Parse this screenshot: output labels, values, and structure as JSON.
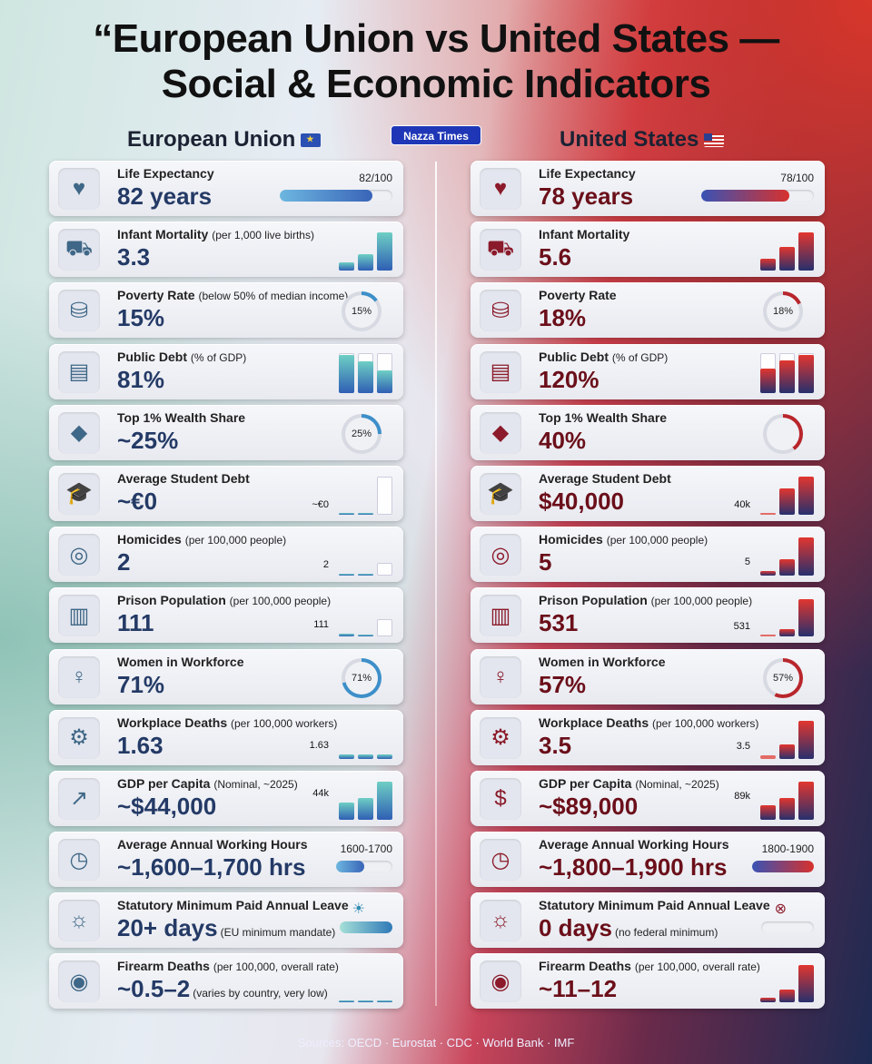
{
  "title": "“European Union vs United States —\nSocial & Economic Indicators",
  "badge": "Nazza Times",
  "eu": {
    "heading": "European Union",
    "items": [
      {
        "icon": "heart-up-icon",
        "label": "Life Expectancy",
        "sub": "",
        "value": "82 years",
        "note": "",
        "viz": "pbar",
        "vtext": "82/100",
        "fill": 0.82
      },
      {
        "icon": "stroller-icon",
        "label": "Infant Mortality",
        "sub": "(per 1,000 live births)",
        "value": "3.3",
        "note": "",
        "viz": "bars",
        "vtext": "",
        "bars": [
          0.22,
          0.42,
          0.95
        ]
      },
      {
        "icon": "coins-icon",
        "label": "Poverty Rate",
        "sub": "(below 50% of median income)",
        "value": "15%",
        "note": "",
        "viz": "ring",
        "vtext": "15%",
        "fill": 0.15
      },
      {
        "icon": "document-icon",
        "label": "Public Debt",
        "sub": "(% of GDP)",
        "value": "81%",
        "note": "",
        "viz": "bars",
        "vtext": "",
        "bars": [
          0.95,
          0.78,
          0.55
        ],
        "ghost": true
      },
      {
        "icon": "diamond-icon",
        "label": "Top 1% Wealth Share",
        "sub": "",
        "value": "~25%",
        "note": "",
        "viz": "ring",
        "vtext": "25%",
        "fill": 0.25
      },
      {
        "icon": "graduation-cap-icon",
        "label": "Average Student Debt",
        "sub": "",
        "value": "~€0",
        "note": "",
        "viz": "bars",
        "vtext": "~€0",
        "bars": [
          0.03,
          0.03,
          0.95
        ],
        "ghostlast": true
      },
      {
        "icon": "fingerprint-icon",
        "label": "Homicides",
        "sub": "(per 100,000 people)",
        "value": "2",
        "note": "",
        "viz": "bars",
        "vtext": "2",
        "bars": [
          0.06,
          0.06,
          0.32
        ],
        "ghostlast": true
      },
      {
        "icon": "prison-bars-icon",
        "label": "Prison Population",
        "sub": "(per 100,000 people)",
        "value": "111",
        "note": "",
        "viz": "bars",
        "vtext": "111",
        "bars": [
          0.08,
          0.05,
          0.45
        ],
        "ghostlast": true
      },
      {
        "icon": "woman-icon",
        "label": "Women in Workforce",
        "sub": "",
        "value": "71%",
        "note": "",
        "viz": "ring",
        "vtext": "71%",
        "fill": 0.71
      },
      {
        "icon": "hard-hat-gear-icon",
        "label": "Workplace Deaths",
        "sub": "(per 100,000 workers)",
        "value": "1.63",
        "note": "",
        "viz": "bars",
        "vtext": "1.63",
        "bars": [
          0.1,
          0.1,
          0.1
        ]
      },
      {
        "icon": "chart-up-icon",
        "label": "GDP per Capita",
        "sub": "(Nominal, ~2025)",
        "value": "~$44,000",
        "note": "",
        "viz": "bars",
        "vtext": "44k",
        "bars": [
          0.42,
          0.55,
          0.95
        ]
      },
      {
        "icon": "clock-calendar-icon",
        "label": "Average Annual Working Hours",
        "sub": "",
        "value": "~1,600–1,700 hrs",
        "note": "",
        "viz": "pbar-mid",
        "vtext": "1600-1700",
        "fill": 0.5
      },
      {
        "icon": "sunbed-icon",
        "label": "Statutory Minimum Paid Annual Leave",
        "sub": "",
        "value": "20+ days",
        "note": "(EU minimum mandate)",
        "viz": "leave",
        "vtext": "",
        "fill": 1.0,
        "sym": "☀"
      },
      {
        "icon": "target-icon",
        "label": "Firearm Deaths",
        "sub": "(per 100,000, overall rate)",
        "value": "~0.5–2",
        "note": "(varies by country, very low)",
        "viz": "bars",
        "vtext": "",
        "bars": [
          0.05,
          0.05,
          0.05
        ]
      }
    ]
  },
  "us": {
    "heading": "United States",
    "items": [
      {
        "icon": "heart-up-icon",
        "label": "Life Expectancy",
        "sub": "",
        "value": "78 years",
        "note": "",
        "viz": "pbar",
        "vtext": "78/100",
        "fill": 0.78
      },
      {
        "icon": "stroller-icon",
        "label": "Infant Mortality",
        "sub": "",
        "value": "5.6",
        "note": "",
        "viz": "bars",
        "vtext": "",
        "bars": [
          0.3,
          0.6,
          0.95
        ]
      },
      {
        "icon": "coins-icon",
        "label": "Poverty Rate",
        "sub": "",
        "value": "18%",
        "note": "",
        "viz": "ring",
        "vtext": "18%",
        "fill": 0.18
      },
      {
        "icon": "document-icon",
        "label": "Public Debt",
        "sub": "(% of GDP)",
        "value": "120%",
        "note": "",
        "viz": "bars",
        "vtext": "",
        "bars": [
          0.6,
          0.8,
          0.95
        ],
        "ghost": true
      },
      {
        "icon": "diamond-icon",
        "label": "Top 1% Wealth Share",
        "sub": "",
        "value": "40%",
        "note": "",
        "viz": "ring",
        "vtext": "",
        "fill": 0.4
      },
      {
        "icon": "graduation-cap-icon",
        "label": "Average Student Debt",
        "sub": "",
        "value": "$40,000",
        "note": "",
        "viz": "bars",
        "vtext": "40k",
        "bars": [
          0.03,
          0.65,
          0.95
        ]
      },
      {
        "icon": "fingerprint-icon",
        "label": "Homicides",
        "sub": "(per 100,000 people)",
        "value": "5",
        "note": "",
        "viz": "bars",
        "vtext": "5",
        "bars": [
          0.12,
          0.42,
          0.95
        ]
      },
      {
        "icon": "prison-bars-icon",
        "label": "Prison Population",
        "sub": "(per 100,000 people)",
        "value": "531",
        "note": "",
        "viz": "bars",
        "vtext": "531",
        "bars": [
          0.03,
          0.2,
          0.95
        ]
      },
      {
        "icon": "woman-icon",
        "label": "Women in Workforce",
        "sub": "",
        "value": "57%",
        "note": "",
        "viz": "ring",
        "vtext": "57%",
        "fill": 0.57
      },
      {
        "icon": "hard-hat-gear-icon",
        "label": "Workplace Deaths",
        "sub": "(per 100,000 workers)",
        "value": "3.5",
        "note": "",
        "viz": "bars",
        "vtext": "3.5",
        "bars": [
          0.08,
          0.35,
          0.95
        ]
      },
      {
        "icon": "money-bag-icon",
        "label": "GDP per Capita",
        "sub": "(Nominal, ~2025)",
        "value": "~$89,000",
        "note": "",
        "viz": "bars",
        "vtext": "89k",
        "bars": [
          0.35,
          0.55,
          0.95
        ]
      },
      {
        "icon": "clock-calendar-icon",
        "label": "Average Annual Working Hours",
        "sub": "",
        "value": "~1,800–1,900 hrs",
        "note": "",
        "viz": "pbar-mid",
        "vtext": "1800-1900",
        "fill": 1.0
      },
      {
        "icon": "sunbed-icon",
        "label": "Statutory Minimum Paid Annual Leave",
        "sub": "",
        "value": "0 days",
        "note": "(no federal minimum)",
        "viz": "leave",
        "vtext": "",
        "fill": 0,
        "sym": "⊗"
      },
      {
        "icon": "target-icon",
        "label": "Firearm Deaths",
        "sub": "(per 100,000, overall rate)",
        "value": "~11–12",
        "note": "",
        "viz": "bars",
        "vtext": "",
        "bars": [
          0.12,
          0.32,
          0.95
        ]
      }
    ]
  },
  "sources": "Sources: OECD · Eurostat · CDC · World Bank · IMF",
  "colors": {
    "eu_accent": "#243a66",
    "us_accent": "#6b0f1a"
  }
}
